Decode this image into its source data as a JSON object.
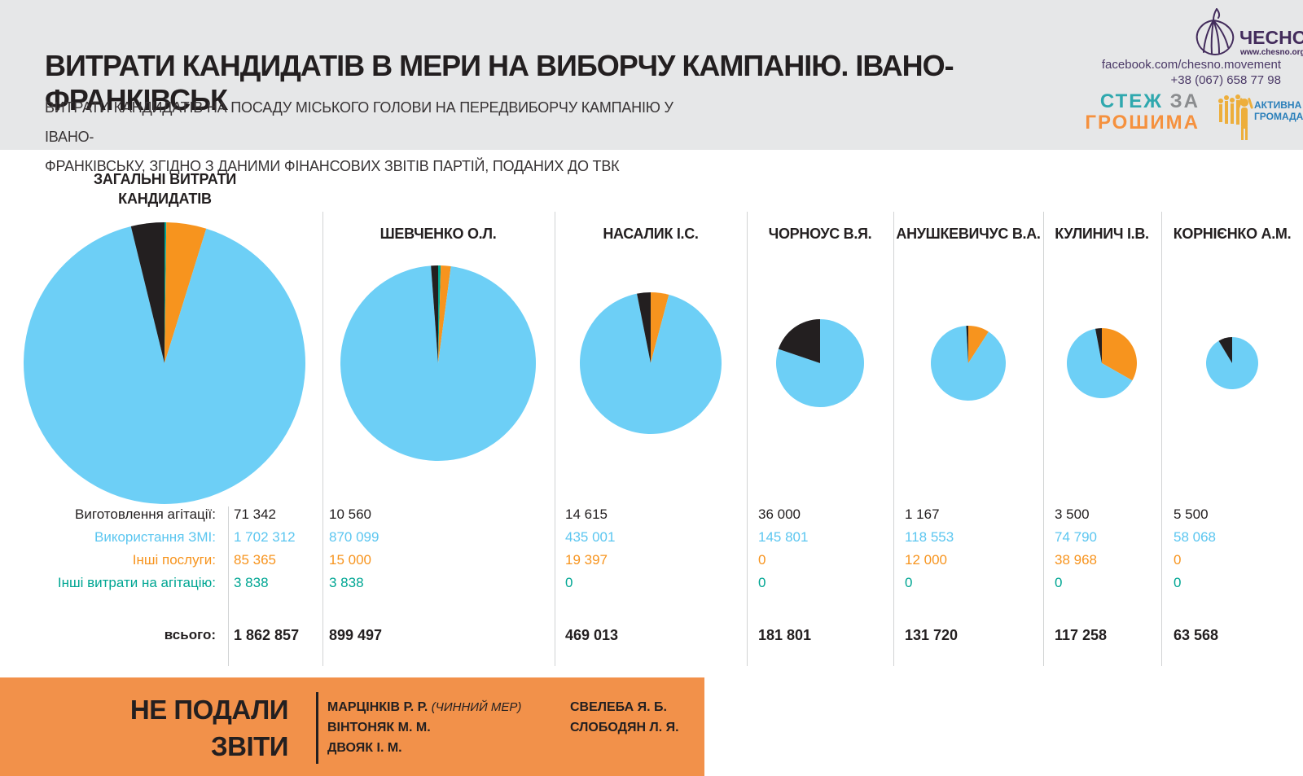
{
  "header": {
    "title": "ВИТРАТИ КАНДИДАТІВ В МЕРИ НА ВИБОРЧУ КАМПАНІЮ. ІВАНО-ФРАНКІВСЬК",
    "subtitle_line1": "ВИТРАТИ КАНДИДАТІВ НА ПОСАДУ МІСЬКОГО ГОЛОВИ НА ПЕРЕДВИБОРЧУ КАМПАНІЮ У ІВАНО-",
    "subtitle_line2": "ФРАНКІВСЬКУ, ЗГІДНО З ДАНИМИ ФІНАНСОВИХ ЗВІТІВ ПАРТІЙ, ПОДАНИХ ДО ТВК"
  },
  "brand": {
    "name": "ЧЕСНО",
    "site": "www.chesno.org",
    "facebook": "facebook.com/chesno.movement",
    "phone": "+38 (067) 658 77 98",
    "stezh": "СТЕЖ",
    "za": "ЗА",
    "hroshyma": "ГРОШИМА",
    "ag_line1": "АКТИВНА",
    "ag_line2": "ГРОМАДА"
  },
  "overall": {
    "title_line1": "ЗАГАЛЬНІ ВИТРАТИ",
    "title_line2": "КАНДИДАТІВ"
  },
  "colors": {
    "production": "#231F20",
    "media": "#6DCFF6",
    "services": "#F7941E",
    "other": "#00A693",
    "footer_accent": "#F2914A",
    "header_bg": "#E6E7E8",
    "brand_purple": "#432C5C"
  },
  "chart_data": {
    "type": "pie",
    "slice_labels": [
      "Виготовлення агітації",
      "Використання ЗМІ",
      "Інші послуги",
      "Інші витрати на агітацію"
    ],
    "slice_order_clockwise_from_top": [
      "other",
      "services",
      "media",
      "production"
    ],
    "slice_colors": {
      "production": "#231F20",
      "media": "#6DCFF6",
      "services": "#F7941E",
      "other": "#00A693"
    },
    "note": "pie radius scales with sqrt(total); largest pie radius 173px",
    "pies": [
      {
        "name": "ЗАГАЛЬНІ ВИТРАТИ КАНДИДАТІВ",
        "production": 71342,
        "media": 1702312,
        "services": 85365,
        "other": 3838,
        "total": 1862857
      },
      {
        "name": "ШЕВЧЕНКО О.Л.",
        "production": 10560,
        "media": 870099,
        "services": 15000,
        "other": 3838,
        "total": 899497
      },
      {
        "name": "НАСАЛИК І.С.",
        "production": 14615,
        "media": 435001,
        "services": 19397,
        "other": 0,
        "total": 469013
      },
      {
        "name": "ЧОРНОУС В.Я.",
        "production": 36000,
        "media": 145801,
        "services": 0,
        "other": 0,
        "total": 181801
      },
      {
        "name": "АНУШКЕВИЧУС В.А.",
        "production": 1167,
        "media": 118553,
        "services": 12000,
        "other": 0,
        "total": 131720
      },
      {
        "name": "КУЛИНИЧ І.В.",
        "production": 3500,
        "media": 74790,
        "services": 38968,
        "other": 0,
        "total": 117258
      },
      {
        "name": "КОРНІЄНКО А.М.",
        "production": 5500,
        "media": 58068,
        "services": 0,
        "other": 0,
        "total": 63568
      }
    ]
  },
  "table": {
    "labels": [
      "Виготовлення агітації:",
      "Використання ЗМІ:",
      "Інші послуги:",
      "Інші витрати на агітацію:"
    ],
    "total_label": "всього:",
    "columns": [
      {
        "values": [
          "71 342",
          "1 702 312",
          "85 365",
          "3 838"
        ],
        "total": "1 862 857"
      },
      {
        "values": [
          "10 560",
          "870 099",
          "15 000",
          "3 838"
        ],
        "total": "899 497"
      },
      {
        "values": [
          "14 615",
          "435 001",
          "19 397",
          "0"
        ],
        "total": "469 013"
      },
      {
        "values": [
          "36 000",
          "145 801",
          "0",
          "0"
        ],
        "total": "181 801"
      },
      {
        "values": [
          "1 167",
          "118 553",
          "12 000",
          "0"
        ],
        "total": "131 720"
      },
      {
        "values": [
          "3 500",
          "74 790",
          "38 968",
          "0"
        ],
        "total": "117 258"
      },
      {
        "values": [
          "5 500",
          "58 068",
          "0",
          "0"
        ],
        "total": "63 568"
      }
    ]
  },
  "footer": {
    "headline_line1": "НЕ ПОДАЛИ",
    "headline_line2": "ЗВІТИ",
    "col1": [
      "МАРЦІНКІВ Р. Р.",
      "ВІНТОНЯК М. М.",
      "ДВОЯК І. М."
    ],
    "col1_note": "(ЧИННИЙ МЕР)",
    "col2": [
      "СВЕЛЕБА Я. Б.",
      "СЛОБОДЯН Л. Я."
    ]
  }
}
